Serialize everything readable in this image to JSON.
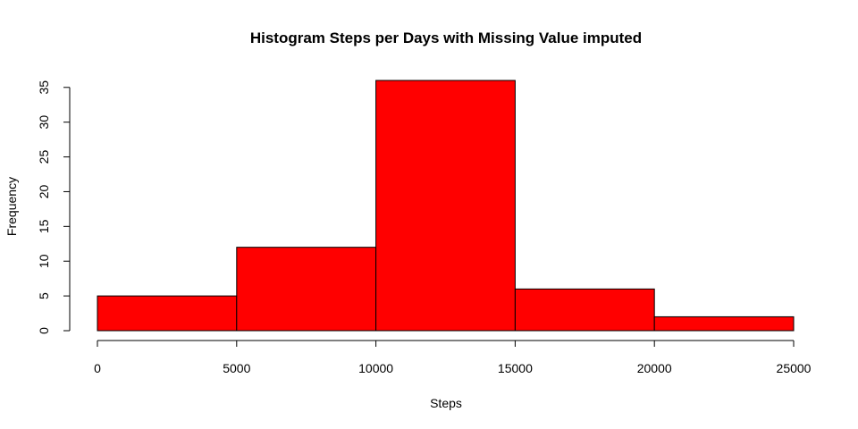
{
  "chart_data": {
    "type": "bar",
    "title": "Histogram Steps per Days with Missing Value imputed",
    "xlabel": "Steps",
    "ylabel": "Frequency",
    "bins": [
      {
        "from": 0,
        "to": 5000,
        "value": 5
      },
      {
        "from": 5000,
        "to": 10000,
        "value": 12
      },
      {
        "from": 10000,
        "to": 15000,
        "value": 36
      },
      {
        "from": 15000,
        "to": 20000,
        "value": 6
      },
      {
        "from": 20000,
        "to": 25000,
        "value": 2
      }
    ],
    "xlim": [
      0,
      25000
    ],
    "ylim": [
      0,
      36
    ],
    "x_ticks": [
      "0",
      "5000",
      "10000",
      "15000",
      "20000",
      "25000"
    ],
    "y_ticks": [
      "0",
      "5",
      "10",
      "15",
      "20",
      "25",
      "30",
      "35"
    ],
    "bar_color": "#ff0000",
    "grid": false,
    "legend": "none"
  }
}
